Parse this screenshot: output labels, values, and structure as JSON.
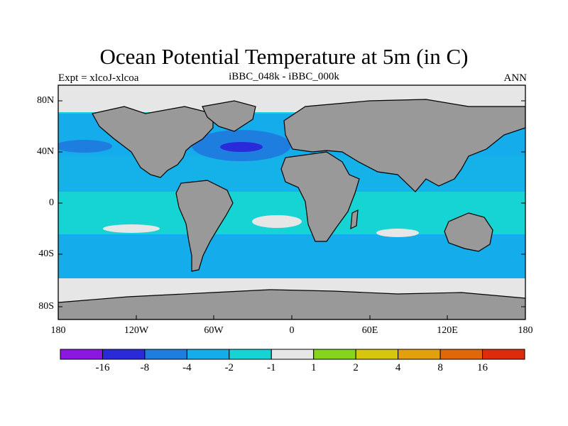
{
  "header": {
    "title": "Ocean Potential Temperature at 5m (in C)",
    "left_label": "Expt = xlcoJ-xlcoa",
    "center_label": "iBBC_048k - iBBC_000k",
    "right_label": "ANN"
  },
  "axes": {
    "y_ticks": [
      "80N",
      "40N",
      "0",
      "40S",
      "80S"
    ],
    "x_ticks": [
      "180",
      "120W",
      "60W",
      "0",
      "60E",
      "120E",
      "180"
    ]
  },
  "colorbar": {
    "colors": [
      "#8a18e0",
      "#2a2ad8",
      "#1e7ee0",
      "#15acec",
      "#17d4d4",
      "#e6e6e6",
      "#86d41c",
      "#d6c60e",
      "#e2a00c",
      "#e06808",
      "#dc2c0c"
    ],
    "labels": [
      "-16",
      "-8",
      "-4",
      "-2",
      "-1",
      "1",
      "2",
      "4",
      "8",
      "16"
    ]
  },
  "map": {
    "land_color": "#999999",
    "missing_color": "#e6e6e6",
    "projection": "cylindrical-equidistant",
    "lon_range": [
      -180,
      180
    ],
    "lat_range": [
      -90,
      90
    ]
  }
}
